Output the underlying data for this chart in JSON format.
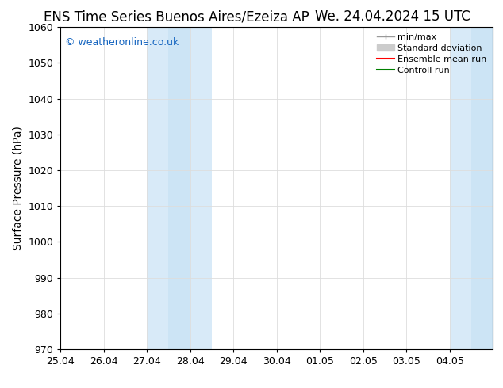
{
  "title_left": "ENS Time Series Buenos Aires/Ezeiza AP",
  "title_right": "We. 24.04.2024 15 UTC",
  "ylabel": "Surface Pressure (hPa)",
  "ylim": [
    970,
    1060
  ],
  "yticks": [
    970,
    980,
    990,
    1000,
    1010,
    1020,
    1030,
    1040,
    1050,
    1060
  ],
  "xtick_labels": [
    "25.04",
    "26.04",
    "27.04",
    "28.04",
    "29.04",
    "30.04",
    "01.05",
    "02.05",
    "03.05",
    "04.05"
  ],
  "xlim": [
    0,
    10
  ],
  "shaded_regions": [
    {
      "x_start": 2.0,
      "x_end": 2.5,
      "color": "#d8eaf8"
    },
    {
      "x_start": 2.5,
      "x_end": 3.0,
      "color": "#cce4f5"
    },
    {
      "x_start": 3.0,
      "x_end": 3.5,
      "color": "#d8eaf8"
    },
    {
      "x_start": 9.0,
      "x_end": 9.5,
      "color": "#d8eaf8"
    },
    {
      "x_start": 9.5,
      "x_end": 10.0,
      "color": "#cce4f5"
    }
  ],
  "watermark_text": "© weatheronline.co.uk",
  "watermark_color": "#1565c0",
  "background_color": "#ffffff",
  "grid_color": "#dddddd",
  "spine_color": "#000000",
  "legend_entries": [
    {
      "label": "min/max",
      "color": "#999999",
      "lw": 1.0
    },
    {
      "label": "Standard deviation",
      "color": "#cccccc",
      "lw": 6
    },
    {
      "label": "Ensemble mean run",
      "color": "#ff0000",
      "lw": 1.5
    },
    {
      "label": "Controll run",
      "color": "#008000",
      "lw": 1.5
    }
  ],
  "title_fontsize": 12,
  "axis_label_fontsize": 10,
  "tick_fontsize": 9,
  "legend_fontsize": 8,
  "watermark_fontsize": 9
}
